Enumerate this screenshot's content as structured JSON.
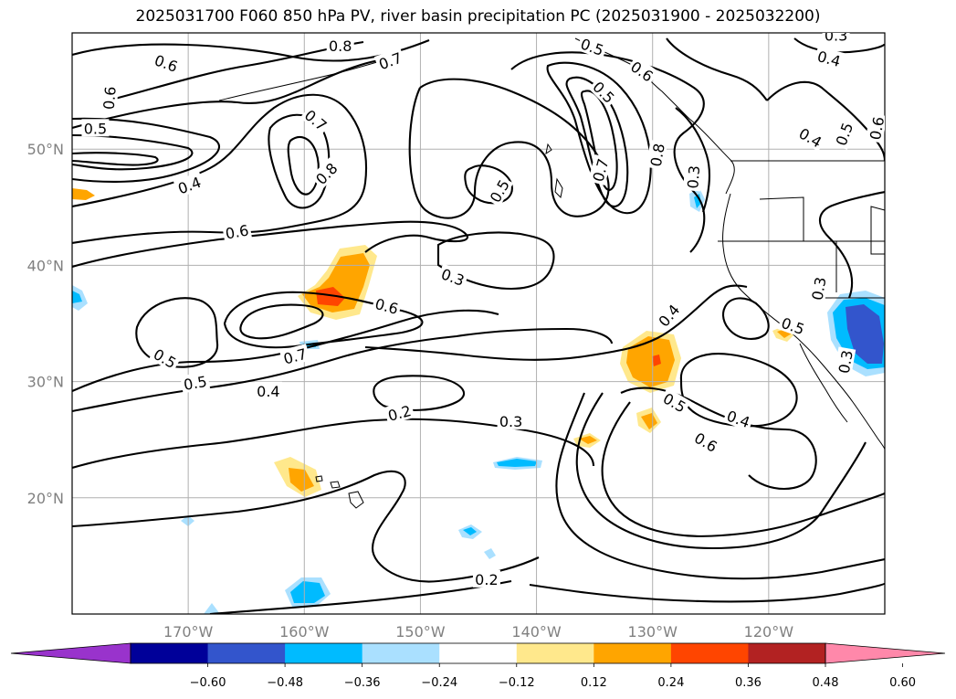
{
  "title": "2025031700 F060 850 hPa PV, river basin precipitation PC (2025031900 - 2025032200)",
  "map": {
    "lon_range": [
      -180,
      -110
    ],
    "lat_range": [
      10,
      60
    ],
    "lon_ticks": [
      -170,
      -160,
      -150,
      -140,
      -130,
      -120
    ],
    "lat_ticks": [
      20,
      30,
      40,
      50
    ],
    "lon_tick_labels": [
      "170°W",
      "160°W",
      "150°W",
      "140°W",
      "130°W",
      "120°W"
    ],
    "lat_tick_labels": [
      "20°N",
      "30°N",
      "40°N",
      "50°N"
    ],
    "grid_color": "#b0b0b0"
  },
  "contour_labels": [
    {
      "text": "0.6",
      "lon": -171.9,
      "lat": 57.4,
      "rot": 20
    },
    {
      "text": "0.8",
      "lon": -156.9,
      "lat": 58.9,
      "rot": 0
    },
    {
      "text": "0.7",
      "lon": -152.6,
      "lat": 57.6,
      "rot": -20
    },
    {
      "text": "0.5",
      "lon": -135.2,
      "lat": 58.8,
      "rot": 20
    },
    {
      "text": "0.3",
      "lon": -114.2,
      "lat": 59.8,
      "rot": 0
    },
    {
      "text": "0.4",
      "lon": -114.8,
      "lat": 57.8,
      "rot": 15
    },
    {
      "text": "0.6",
      "lon": -176.8,
      "lat": 54.4,
      "rot": -85
    },
    {
      "text": "0.5",
      "lon": -178.0,
      "lat": 51.8,
      "rot": 0
    },
    {
      "text": "0.7",
      "lon": -159.0,
      "lat": 52.5,
      "rot": 40
    },
    {
      "text": "0.6",
      "lon": -130.9,
      "lat": 56.7,
      "rot": 35
    },
    {
      "text": "0.5",
      "lon": -134.2,
      "lat": 54.9,
      "rot": 45
    },
    {
      "text": "0.8",
      "lon": -129.6,
      "lat": 49.5,
      "rot": -80
    },
    {
      "text": "0.7",
      "lon": -134.5,
      "lat": 48.2,
      "rot": -75
    },
    {
      "text": "0.3",
      "lon": -126.5,
      "lat": 47.6,
      "rot": -85
    },
    {
      "text": "0.4",
      "lon": -116.4,
      "lat": 51.0,
      "rot": 30
    },
    {
      "text": "0.5",
      "lon": -113.5,
      "lat": 51.3,
      "rot": -70
    },
    {
      "text": "0.6",
      "lon": -110.7,
      "lat": 51.8,
      "rot": -80
    },
    {
      "text": "0.8",
      "lon": -158.1,
      "lat": 47.9,
      "rot": -45
    },
    {
      "text": "0.4",
      "lon": -169.9,
      "lat": 46.9,
      "rot": -20
    },
    {
      "text": "0.5",
      "lon": -143.2,
      "lat": 46.4,
      "rot": -60
    },
    {
      "text": "0.6",
      "lon": -165.8,
      "lat": 42.9,
      "rot": -10
    },
    {
      "text": "0.3",
      "lon": -147.2,
      "lat": 39.0,
      "rot": 20
    },
    {
      "text": "0.6",
      "lon": -152.9,
      "lat": 36.5,
      "rot": 15
    },
    {
      "text": "0.4",
      "lon": -128.6,
      "lat": 35.7,
      "rot": -50
    },
    {
      "text": "0.5",
      "lon": -117.9,
      "lat": 34.8,
      "rot": 20
    },
    {
      "text": "0.3",
      "lon": -115.7,
      "lat": 38.0,
      "rot": -80
    },
    {
      "text": "0.3",
      "lon": -113.4,
      "lat": 31.7,
      "rot": -80
    },
    {
      "text": "0.7",
      "lon": -160.8,
      "lat": 32.2,
      "rot": -15
    },
    {
      "text": "0.5",
      "lon": -172.0,
      "lat": 32.0,
      "rot": 30
    },
    {
      "text": "0.5",
      "lon": -169.4,
      "lat": 29.9,
      "rot": -10
    },
    {
      "text": "0.4",
      "lon": -163.1,
      "lat": 29.2,
      "rot": 0
    },
    {
      "text": "0.2",
      "lon": -151.8,
      "lat": 27.3,
      "rot": -15
    },
    {
      "text": "0.3",
      "lon": -142.2,
      "lat": 26.6,
      "rot": 0
    },
    {
      "text": "0.5",
      "lon": -128.1,
      "lat": 28.2,
      "rot": 30
    },
    {
      "text": "0.4",
      "lon": -122.6,
      "lat": 26.8,
      "rot": 20
    },
    {
      "text": "0.6",
      "lon": -125.4,
      "lat": 24.8,
      "rot": 30
    },
    {
      "text": "0.2",
      "lon": -144.3,
      "lat": 13.0,
      "rot": 0
    }
  ],
  "colorbar": {
    "colors": [
      "#9933cc",
      "#000099",
      "#3355cc",
      "#00bbff",
      "#aae0ff",
      "#ffffff",
      "#ffe88c",
      "#ffa500",
      "#ff4500",
      "#b22222",
      "#ff88aa"
    ],
    "tick_labels": [
      "−0.60",
      "−0.48",
      "−0.36",
      "−0.24",
      "−0.12",
      "0.12",
      "0.24",
      "0.36",
      "0.48",
      "0.60"
    ]
  },
  "precip_colors": {
    "neg_light": "#aae0ff",
    "neg_mid": "#00bbff",
    "neg_strong": "#3355cc",
    "pos_light": "#ffe88c",
    "pos_mid": "#ffa500",
    "pos_strong": "#ff4500"
  }
}
